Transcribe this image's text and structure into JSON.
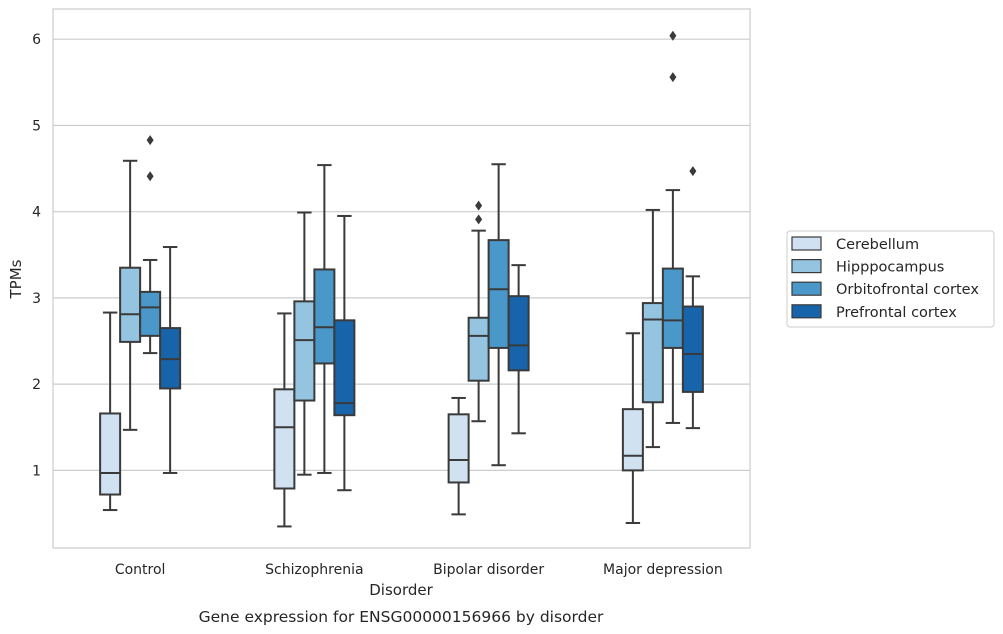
{
  "caption": "Gene expression for ENSG00000156966 by disorder",
  "chart_data": {
    "type": "box",
    "xlabel": "Disorder",
    "ylabel": "TPMs",
    "ylim": [
      0.1,
      6.35
    ],
    "yticks": [
      1,
      2,
      3,
      4,
      5,
      6
    ],
    "grid": "y",
    "legend_position": "right",
    "categories": [
      "Control",
      "Schizophrenia",
      "Bipolar disorder",
      "Major depression"
    ],
    "series": [
      {
        "name": "Cerebellum",
        "color": "#d0e1f2",
        "boxes": [
          {
            "whislo": 0.54,
            "q1": 0.72,
            "med": 0.97,
            "q3": 1.66,
            "whishi": 2.83,
            "fliers": []
          },
          {
            "whislo": 0.35,
            "q1": 0.79,
            "med": 1.5,
            "q3": 1.94,
            "whishi": 2.82,
            "fliers": []
          },
          {
            "whislo": 0.49,
            "q1": 0.86,
            "med": 1.12,
            "q3": 1.65,
            "whishi": 1.84,
            "fliers": []
          },
          {
            "whislo": 0.39,
            "q1": 1.0,
            "med": 1.17,
            "q3": 1.71,
            "whishi": 2.59,
            "fliers": []
          }
        ]
      },
      {
        "name": "Hipppocampus",
        "color": "#94c4df",
        "boxes": [
          {
            "whislo": 1.47,
            "q1": 2.49,
            "med": 2.81,
            "q3": 3.35,
            "whishi": 4.59,
            "fliers": []
          },
          {
            "whislo": 0.95,
            "q1": 1.81,
            "med": 2.51,
            "q3": 2.96,
            "whishi": 3.99,
            "fliers": []
          },
          {
            "whislo": 1.57,
            "q1": 2.04,
            "med": 2.56,
            "q3": 2.77,
            "whishi": 3.78,
            "fliers": [
              3.91,
              4.07
            ]
          },
          {
            "whislo": 1.27,
            "q1": 1.79,
            "med": 2.75,
            "q3": 2.94,
            "whishi": 4.02,
            "fliers": []
          }
        ]
      },
      {
        "name": "Orbitofrontal cortex",
        "color": "#4a98c9",
        "boxes": [
          {
            "whislo": 2.36,
            "q1": 2.56,
            "med": 2.89,
            "q3": 3.07,
            "whishi": 3.44,
            "fliers": [
              4.41,
              4.83
            ]
          },
          {
            "whislo": 0.97,
            "q1": 2.24,
            "med": 2.66,
            "q3": 3.33,
            "whishi": 4.54,
            "fliers": []
          },
          {
            "whislo": 1.06,
            "q1": 2.42,
            "med": 3.1,
            "q3": 3.67,
            "whishi": 4.55,
            "fliers": []
          },
          {
            "whislo": 1.55,
            "q1": 2.42,
            "med": 2.74,
            "q3": 3.34,
            "whishi": 4.25,
            "fliers": [
              5.56,
              6.04
            ]
          }
        ]
      },
      {
        "name": "Prefrontal cortex",
        "color": "#1764ab",
        "boxes": [
          {
            "whislo": 0.97,
            "q1": 1.95,
            "med": 2.29,
            "q3": 2.65,
            "whishi": 3.59,
            "fliers": []
          },
          {
            "whislo": 0.77,
            "q1": 1.64,
            "med": 1.78,
            "q3": 2.74,
            "whishi": 3.95,
            "fliers": []
          },
          {
            "whislo": 1.43,
            "q1": 2.16,
            "med": 2.45,
            "q3": 3.02,
            "whishi": 3.38,
            "fliers": []
          },
          {
            "whislo": 1.49,
            "q1": 1.91,
            "med": 2.35,
            "q3": 2.9,
            "whishi": 3.25,
            "fliers": [
              4.47
            ]
          }
        ]
      }
    ]
  }
}
